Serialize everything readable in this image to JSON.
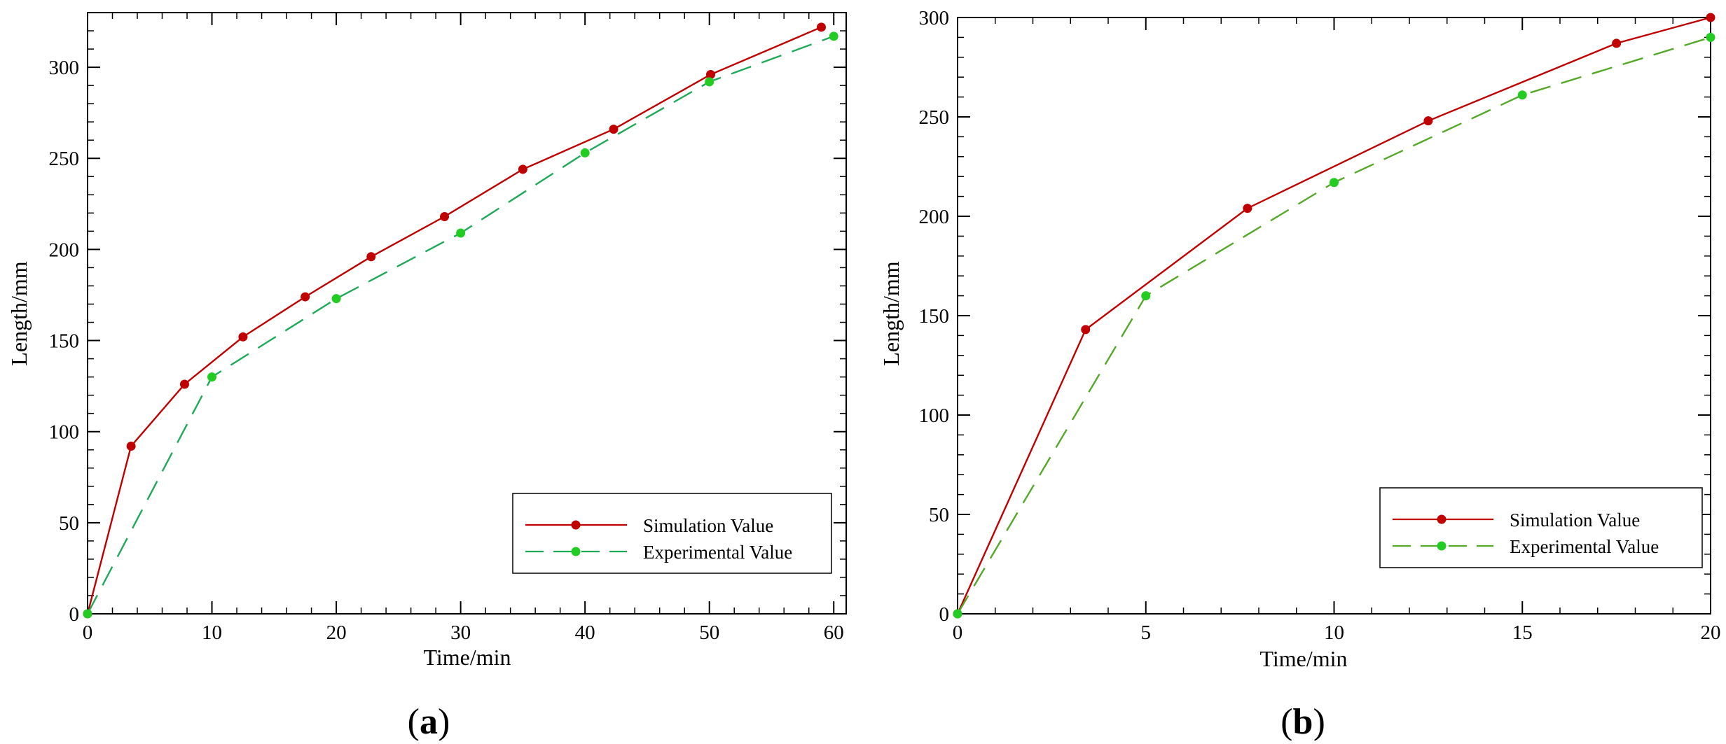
{
  "colors": {
    "simulation": "#c00000",
    "experimental_a": "#1faa5a",
    "experimental_b": "#55a828",
    "marker_experimental": "#22cc22"
  },
  "chart_data": [
    {
      "id": "a",
      "type": "line",
      "caption": {
        "open": "(",
        "letter": "a",
        "close": ")"
      },
      "xlabel": "Time/min",
      "ylabel": "Length/mm",
      "xlim": [
        0,
        61
      ],
      "ylim": [
        0,
        330
      ],
      "xticks": [
        0,
        10,
        20,
        30,
        40,
        50,
        60
      ],
      "yticks": [
        0,
        50,
        100,
        150,
        200,
        250,
        300
      ],
      "xminor_step": 2,
      "yminor_step": 10,
      "legend_position": "bottom-right",
      "series": [
        {
          "name": "Simulation Value",
          "style": "solid",
          "color_key": "simulation",
          "points": [
            [
              0,
              0
            ],
            [
              3.5,
              92
            ],
            [
              7.8,
              126
            ],
            [
              12.5,
              152
            ],
            [
              17.5,
              174
            ],
            [
              22.8,
              196
            ],
            [
              28.7,
              218
            ],
            [
              35,
              244
            ],
            [
              42.3,
              266
            ],
            [
              50.1,
              296
            ],
            [
              59,
              322
            ]
          ]
        },
        {
          "name": "Experimental Value",
          "style": "dashed",
          "color_key": "experimental_a",
          "points": [
            [
              0,
              0
            ],
            [
              10,
              130
            ],
            [
              20,
              173
            ],
            [
              30,
              209
            ],
            [
              40,
              253
            ],
            [
              50,
              292
            ],
            [
              60,
              317
            ]
          ]
        }
      ]
    },
    {
      "id": "b",
      "type": "line",
      "caption": {
        "open": "(",
        "letter": "b",
        "close": ")"
      },
      "xlabel": "Time/min",
      "ylabel": "Length/mm",
      "xlim": [
        0,
        20
      ],
      "ylim": [
        0,
        300
      ],
      "xticks": [
        0,
        5,
        10,
        15,
        20
      ],
      "yticks": [
        0,
        50,
        100,
        150,
        200,
        250,
        300
      ],
      "xminor_step": 1,
      "yminor_step": 10,
      "legend_position": "bottom-right",
      "series": [
        {
          "name": "Simulation Value",
          "style": "solid",
          "color_key": "simulation",
          "points": [
            [
              0,
              0
            ],
            [
              3.4,
              143
            ],
            [
              7.7,
              204
            ],
            [
              12.5,
              248
            ],
            [
              17.5,
              287
            ],
            [
              20,
              300
            ]
          ]
        },
        {
          "name": "Experimental Value",
          "style": "dashed",
          "color_key": "experimental_b",
          "points": [
            [
              0,
              0
            ],
            [
              5,
              160
            ],
            [
              10,
              217
            ],
            [
              15,
              261
            ],
            [
              20,
              290
            ]
          ]
        }
      ]
    }
  ]
}
